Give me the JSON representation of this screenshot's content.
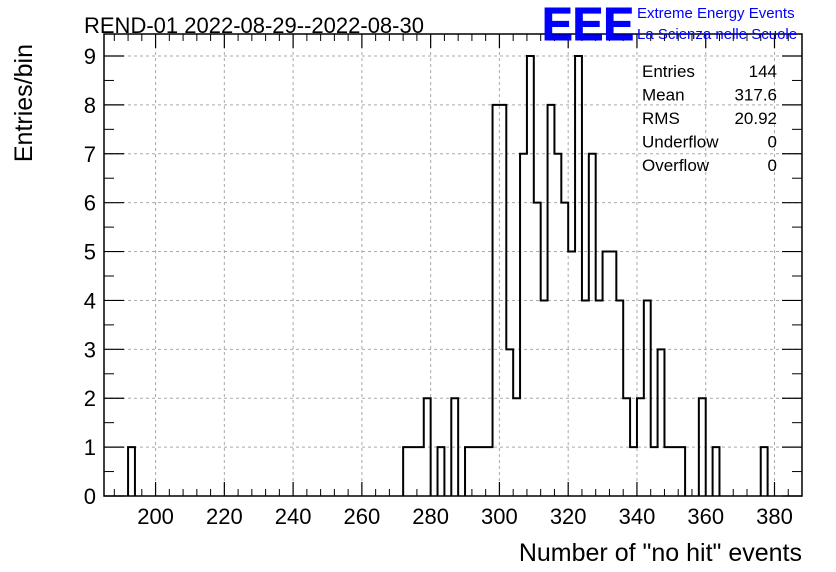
{
  "chart_data": {
    "type": "bar",
    "subtype": "histogram",
    "title": "REND-01 2022-08-29--2022-08-30",
    "xlabel": "Number of \"no hit\" events",
    "ylabel": "Entries/bin",
    "xlim": [
      185,
      388
    ],
    "ylim": [
      0,
      9.45
    ],
    "grid": true,
    "x_ticks": [
      "200",
      "220",
      "240",
      "260",
      "280",
      "300",
      "320",
      "340",
      "360",
      "380"
    ],
    "y_ticks": [
      "0",
      "1",
      "2",
      "3",
      "4",
      "5",
      "6",
      "7",
      "8",
      "9"
    ],
    "bin_width": 2,
    "bins": [
      {
        "x": 193,
        "y": 1
      },
      {
        "x": 273,
        "y": 1
      },
      {
        "x": 275,
        "y": 1
      },
      {
        "x": 277,
        "y": 1
      },
      {
        "x": 279,
        "y": 2
      },
      {
        "x": 283,
        "y": 1
      },
      {
        "x": 287,
        "y": 2
      },
      {
        "x": 291,
        "y": 1
      },
      {
        "x": 293,
        "y": 1
      },
      {
        "x": 295,
        "y": 1
      },
      {
        "x": 297,
        "y": 1
      },
      {
        "x": 299,
        "y": 8
      },
      {
        "x": 301,
        "y": 8
      },
      {
        "x": 303,
        "y": 3
      },
      {
        "x": 305,
        "y": 2
      },
      {
        "x": 307,
        "y": 7
      },
      {
        "x": 309,
        "y": 9
      },
      {
        "x": 311,
        "y": 6
      },
      {
        "x": 313,
        "y": 4
      },
      {
        "x": 315,
        "y": 8
      },
      {
        "x": 317,
        "y": 7
      },
      {
        "x": 319,
        "y": 6
      },
      {
        "x": 321,
        "y": 5
      },
      {
        "x": 323,
        "y": 9
      },
      {
        "x": 325,
        "y": 4
      },
      {
        "x": 327,
        "y": 7
      },
      {
        "x": 329,
        "y": 4
      },
      {
        "x": 331,
        "y": 5
      },
      {
        "x": 333,
        "y": 5
      },
      {
        "x": 335,
        "y": 4
      },
      {
        "x": 337,
        "y": 2
      },
      {
        "x": 339,
        "y": 1
      },
      {
        "x": 341,
        "y": 2
      },
      {
        "x": 343,
        "y": 4
      },
      {
        "x": 345,
        "y": 1
      },
      {
        "x": 347,
        "y": 3
      },
      {
        "x": 349,
        "y": 1
      },
      {
        "x": 351,
        "y": 1
      },
      {
        "x": 353,
        "y": 1
      },
      {
        "x": 359,
        "y": 2
      },
      {
        "x": 363,
        "y": 1
      },
      {
        "x": 377,
        "y": 1
      }
    ],
    "stats": {
      "labels": [
        "Entries",
        "Mean",
        "RMS",
        "Underflow",
        "Overflow"
      ],
      "values": [
        "144",
        "317.6",
        "20.92",
        "0",
        "0"
      ]
    },
    "logo": {
      "mark": "EEE",
      "line1": "Extreme Energy Events",
      "line2": "La Scienza nelle Scuole"
    },
    "colors": {
      "line": "#000000",
      "grid": "#aaaaaa",
      "logo": "#0000ff"
    }
  }
}
